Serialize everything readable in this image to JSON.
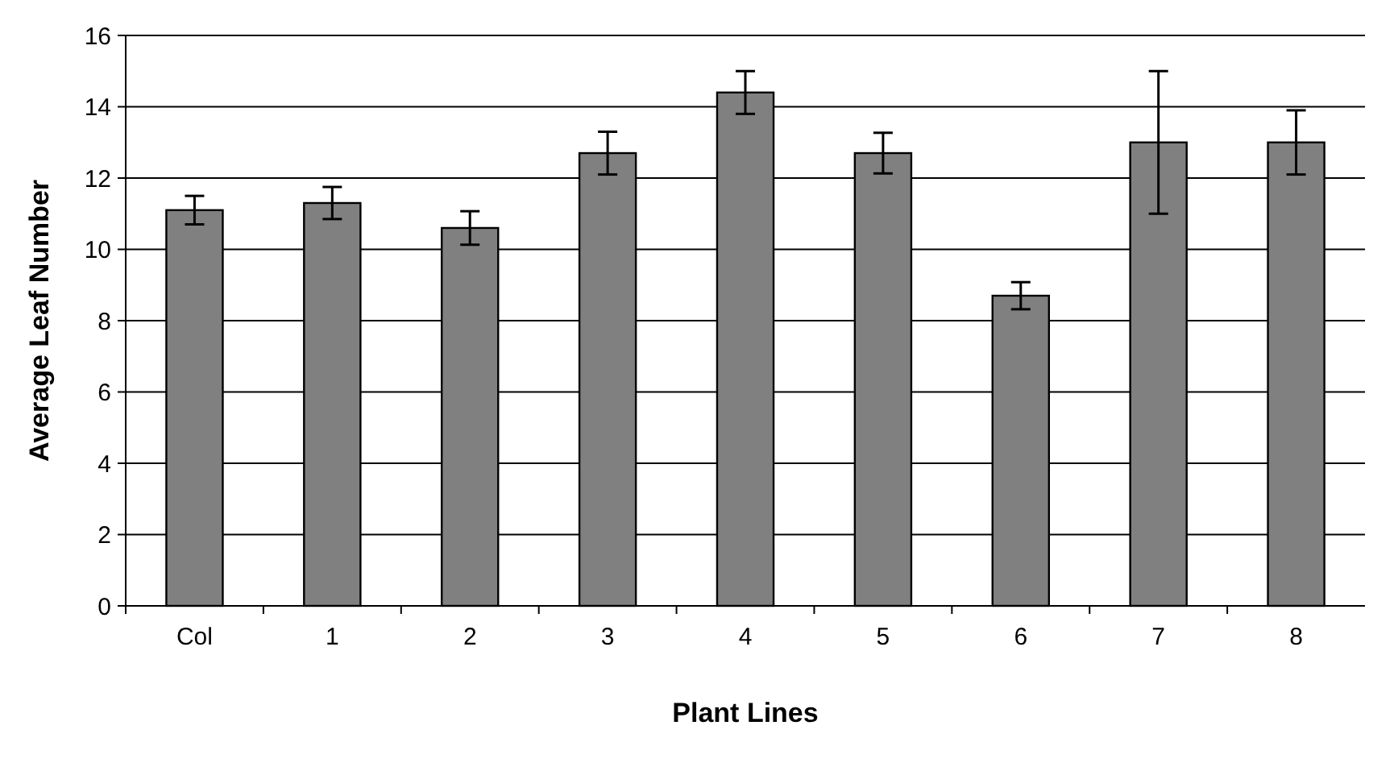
{
  "chart_data": {
    "type": "bar",
    "xlabel": "Plant Lines",
    "ylabel": "Average Leaf Number",
    "categories": [
      "Col",
      "1",
      "2",
      "3",
      "4",
      "5",
      "6",
      "7",
      "8"
    ],
    "values": [
      11.1,
      11.3,
      10.6,
      12.7,
      14.4,
      12.7,
      8.7,
      13.0,
      13.0
    ],
    "errors": [
      0.4,
      0.45,
      0.47,
      0.6,
      0.6,
      0.57,
      0.38,
      2.0,
      0.9
    ],
    "color": "#808080",
    "ylim": [
      0,
      16
    ],
    "yticks": [
      0,
      2,
      4,
      6,
      8,
      10,
      12,
      14,
      16
    ],
    "grid": "y"
  }
}
